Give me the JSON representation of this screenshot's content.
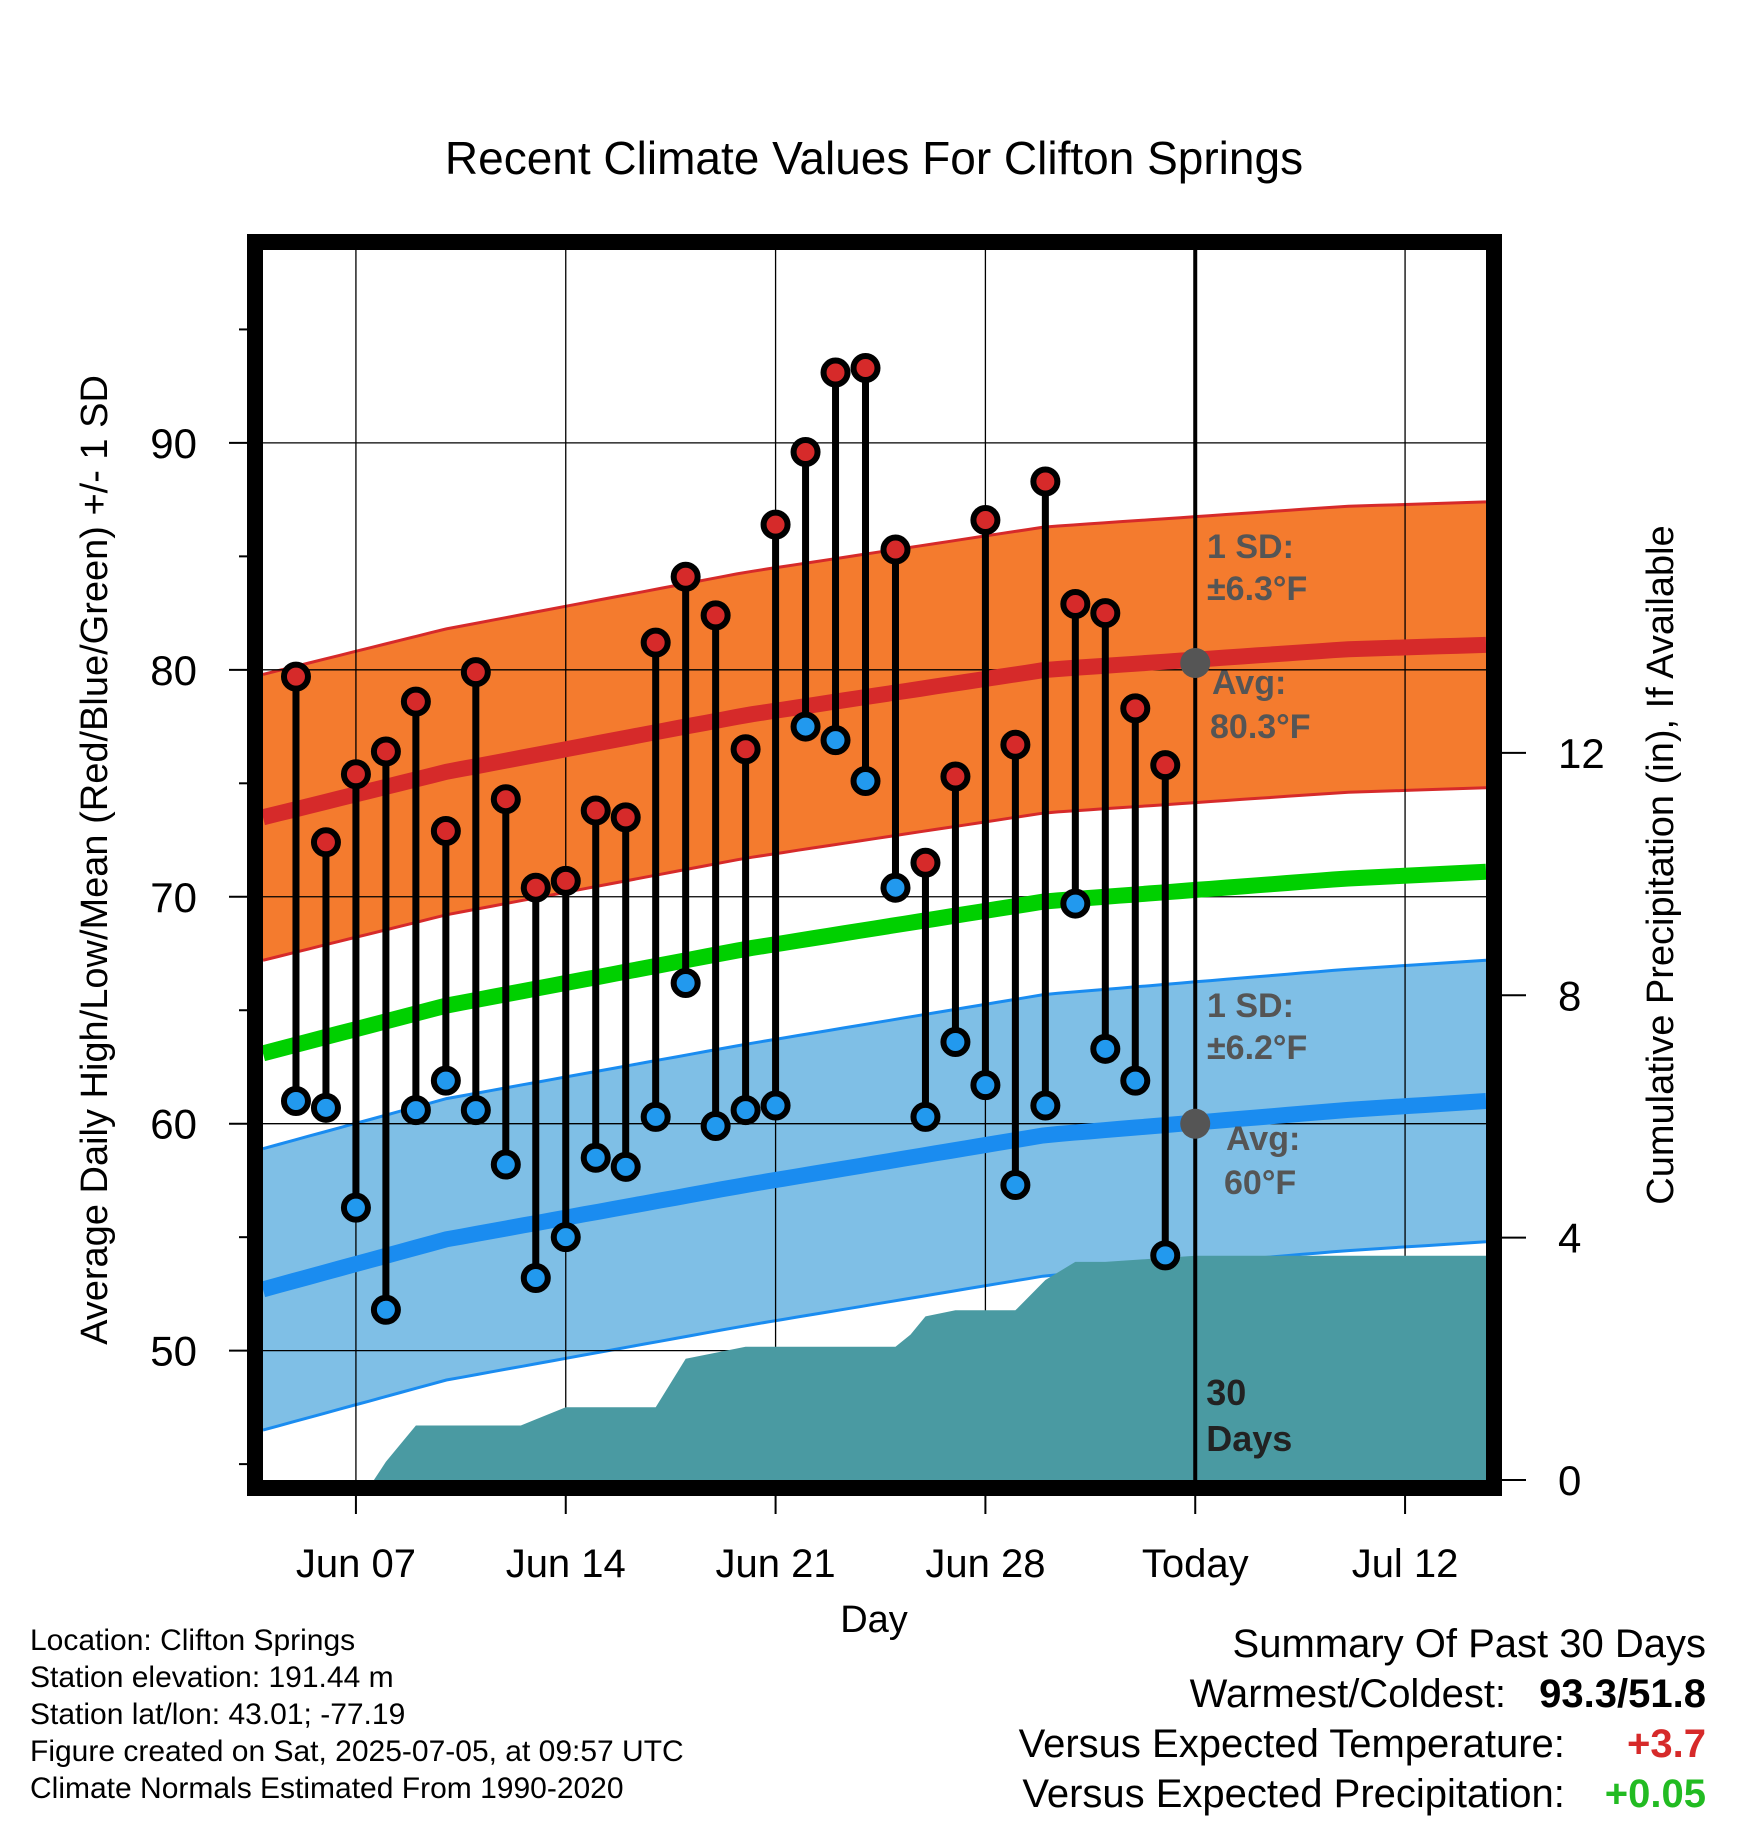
{
  "chart_data": {
    "type": "line",
    "title": "Recent Climate Values For Clifton Springs",
    "xlabel": "Day",
    "ylabel": "Average Daily High/Low/Mean (Red/Blue/Green) +/- 1 SD",
    "y2label": "Cumulative Precipitation (in), If Available",
    "x_ticks": [
      "Jun 07",
      "Jun 14",
      "Jun 21",
      "Jun 28",
      "Today",
      "Jul 12"
    ],
    "x_tick_days": [
      7,
      14,
      21,
      28,
      35,
      42
    ],
    "xlim": [
      3.9,
      44.7
    ],
    "ylim": [
      44.3,
      98.5
    ],
    "y_ticks": [
      50,
      60,
      70,
      80,
      90
    ],
    "y2lim": [
      0,
      20.3
    ],
    "y2_ticks": [
      0,
      4,
      8,
      12
    ],
    "today_day": 35,
    "today_label": "30\nDays",
    "colors": {
      "high_band": "#f47b2e",
      "high_line": "#d62a2a",
      "low_band": "#7fbfe6",
      "low_line": "#1a8cf0",
      "mean_line": "#00d000",
      "precip": "#4a9aa2",
      "high_marker": "#d62a2a",
      "low_marker": "#2299ee"
    },
    "normals": {
      "days": [
        3.9,
        10,
        20,
        30,
        40,
        44.7
      ],
      "high_avg": [
        73.5,
        75.5,
        78.0,
        80.0,
        80.9,
        81.1
      ],
      "low_avg": [
        52.7,
        54.9,
        57.3,
        59.5,
        60.6,
        61.0
      ],
      "mean_avg": [
        63.1,
        65.2,
        67.7,
        69.8,
        70.8,
        71.1
      ],
      "high_sd": 6.3,
      "low_sd": 6.2
    },
    "high_annotation": {
      "sd_label": "1 SD:",
      "sd_value": "±6.3°F",
      "avg_label": "Avg:",
      "avg_value": "80.3°F",
      "avg": 80.3
    },
    "low_annotation": {
      "sd_label": "1 SD:",
      "sd_value": "±6.2°F",
      "avg_label": "Avg:",
      "avg_value": "60°F",
      "avg": 60.0
    },
    "series": [
      {
        "name": "High",
        "x": [
          5,
          6,
          7,
          8,
          9,
          10,
          11,
          12,
          13,
          14,
          15,
          16,
          17,
          18,
          19,
          20,
          21,
          22,
          23,
          24,
          25,
          26,
          27,
          28,
          29,
          30,
          31,
          32,
          33,
          34
        ],
        "values": [
          79.7,
          72.4,
          75.4,
          76.4,
          78.6,
          72.9,
          79.9,
          74.3,
          70.4,
          70.7,
          73.8,
          73.5,
          81.2,
          84.1,
          82.4,
          76.5,
          86.4,
          89.6,
          93.1,
          93.3,
          85.3,
          71.5,
          75.3,
          86.6,
          76.7,
          88.3,
          82.9,
          82.5,
          78.3,
          75.8
        ]
      },
      {
        "name": "Low",
        "x": [
          5,
          6,
          7,
          8,
          9,
          10,
          11,
          12,
          13,
          14,
          15,
          16,
          17,
          18,
          19,
          20,
          21,
          22,
          23,
          24,
          25,
          26,
          27,
          28,
          29,
          30,
          31,
          32,
          33,
          34
        ],
        "values": [
          61.0,
          60.7,
          56.3,
          51.8,
          60.6,
          61.9,
          60.6,
          58.2,
          53.2,
          55.0,
          58.5,
          58.1,
          60.3,
          66.2,
          59.9,
          60.6,
          60.8,
          77.5,
          76.9,
          75.1,
          70.4,
          60.3,
          63.6,
          61.7,
          57.3,
          60.8,
          69.7,
          63.3,
          61.9,
          54.2
        ]
      },
      {
        "name": "Cumulative Precipitation",
        "x": [
          3.9,
          7.6,
          8.0,
          9.0,
          10.0,
          11.5,
          12.5,
          13.0,
          14.0,
          15.0,
          16.5,
          17.0,
          18.0,
          19.0,
          20.0,
          21.0,
          24.0,
          25.0,
          25.5,
          26.0,
          27.0,
          29.0,
          30.0,
          31.0,
          32.0,
          35.0,
          44.7
        ],
        "values": [
          0,
          0,
          0.3,
          0.9,
          0.9,
          0.9,
          0.9,
          1.0,
          1.2,
          1.2,
          1.2,
          1.2,
          2.0,
          2.1,
          2.2,
          2.2,
          2.2,
          2.2,
          2.4,
          2.7,
          2.8,
          2.8,
          3.3,
          3.6,
          3.6,
          3.7,
          3.7
        ]
      }
    ]
  },
  "info": {
    "location": "Location: Clifton Springs",
    "elevation": "Station elevation: 191.44 m",
    "latlon": "Station lat/lon: 43.01; -77.19",
    "created": "Figure created on Sat, 2025-07-05, at 09:57 UTC",
    "normals": "Climate Normals Estimated From 1990-2020"
  },
  "summary": {
    "header": "Summary Of Past 30 Days",
    "warm_cold_label": "Warmest/Coldest:",
    "warm_cold_value": "93.3/51.8",
    "temp_label": "Versus Expected Temperature:",
    "temp_value": "+3.7",
    "temp_color": "#d62a2a",
    "precip_label": "Versus Expected Precipitation:",
    "precip_value": "+0.05",
    "precip_color": "#22bb22"
  }
}
